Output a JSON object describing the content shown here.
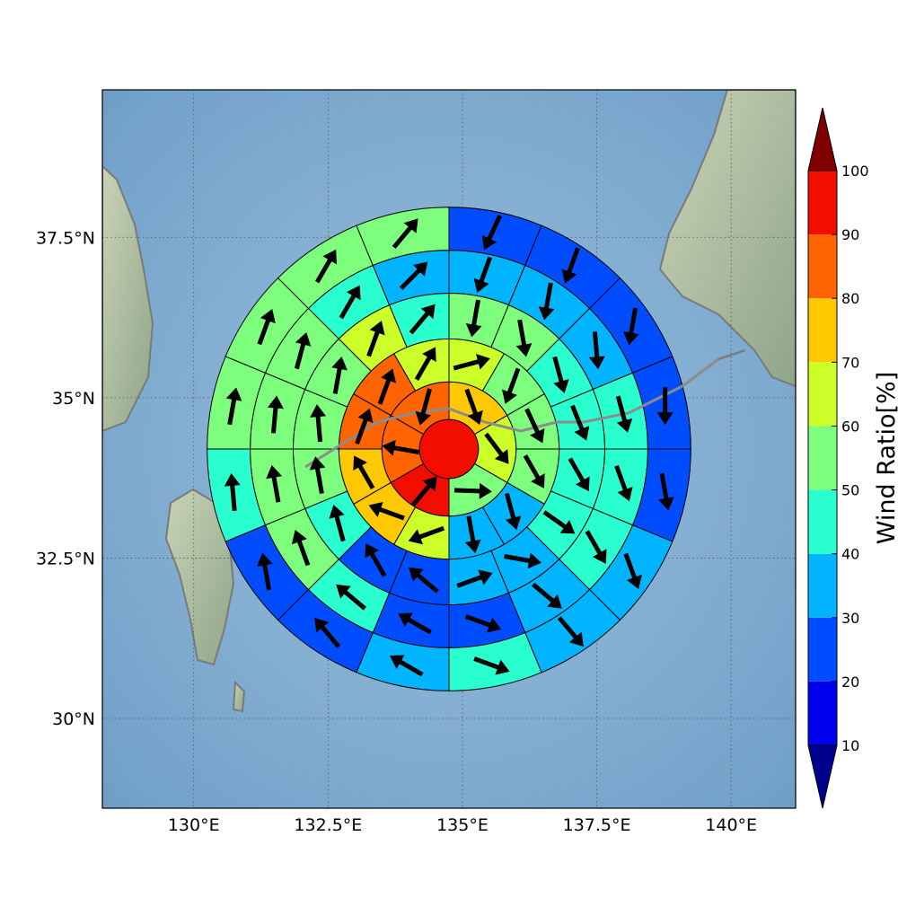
{
  "chart_data": {
    "type": "heatmap",
    "subtype": "polar-sector-wind-map",
    "title": "",
    "map": {
      "lon_range": [
        128.3,
        141.2
      ],
      "lat_range": [
        28.6,
        39.8
      ],
      "center": {
        "lon": 134.75,
        "lat": 34.2
      },
      "gridlines": true,
      "x_ticks": [
        {
          "value": 130.0,
          "label": "130°E"
        },
        {
          "value": 132.5,
          "label": "132.5°E"
        },
        {
          "value": 135.0,
          "label": "135°E"
        },
        {
          "value": 137.5,
          "label": "137.5°E"
        },
        {
          "value": 140.0,
          "label": "140°E"
        }
      ],
      "y_ticks": [
        {
          "value": 30.0,
          "label": "30°N"
        },
        {
          "value": 32.5,
          "label": "32.5°N"
        },
        {
          "value": 35.0,
          "label": "35°N"
        },
        {
          "value": 37.5,
          "label": "37.5°N"
        }
      ]
    },
    "colorbar": {
      "label": "Wind Ratio[%]",
      "ticks": [
        "10",
        "20",
        "30",
        "40",
        "50",
        "60",
        "70",
        "80",
        "90",
        "100"
      ],
      "extend": "both",
      "placement": "right",
      "colors": [
        "#00008f",
        "#0000ee",
        "#004dff",
        "#00b4ff",
        "#2affd0",
        "#7dff7d",
        "#ccff2a",
        "#ffc800",
        "#ff6400",
        "#f20d00",
        "#800000"
      ]
    },
    "rings": [
      {
        "radius_deg": 0.55,
        "sectors": 1,
        "values": [
          97
        ],
        "directions": []
      },
      {
        "radius_deg": 1.25,
        "sectors": 6,
        "values": [
          75,
          62,
          57,
          97,
          85,
          85
        ],
        "directions": [
          160,
          143,
          92,
          40,
          280,
          195
        ]
      },
      {
        "radius_deg": 2.05,
        "sectors": 12,
        "values": [
          52,
          52,
          52,
          35,
          35,
          62,
          75,
          75,
          85,
          85,
          62,
          62
        ],
        "directions": [
          200,
          155,
          150,
          165,
          170,
          250,
          290,
          330,
          20,
          20,
          30,
          75
        ],
        "start_deg": 30
      },
      {
        "radius_deg": 2.9,
        "sectors": 16,
        "values": [
          52,
          52,
          45,
          45,
          45,
          45,
          35,
          35,
          25,
          25,
          45,
          55,
          55,
          55,
          62,
          45
        ],
        "directions": [
          190,
          170,
          165,
          158,
          150,
          125,
          100,
          70,
          310,
          330,
          345,
          350,
          355,
          10,
          20,
          40
        ]
      },
      {
        "radius_deg": 3.7,
        "sectors": 16,
        "values": [
          35,
          35,
          35,
          45,
          45,
          45,
          35,
          25,
          25,
          45,
          55,
          55,
          55,
          55,
          45,
          35
        ],
        "directions": [
          200,
          190,
          175,
          165,
          160,
          150,
          130,
          110,
          300,
          310,
          340,
          350,
          5,
          15,
          30,
          45
        ]
      },
      {
        "radius_deg": 4.5,
        "sectors": 16,
        "values": [
          25,
          25,
          25,
          25,
          25,
          35,
          35,
          45,
          35,
          25,
          25,
          45,
          55,
          55,
          55,
          55
        ],
        "directions": [
          205,
          200,
          190,
          180,
          170,
          160,
          140,
          110,
          300,
          320,
          350,
          355,
          10,
          20,
          30,
          40
        ]
      }
    ],
    "wind_ring_outer_values": [
      25,
      25,
      25,
      25,
      25,
      35,
      35,
      45,
      35,
      25,
      25,
      45,
      55,
      55,
      55,
      55
    ]
  }
}
